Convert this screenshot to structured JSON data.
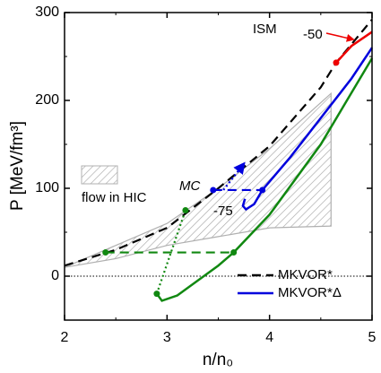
{
  "chart_data": {
    "type": "line",
    "xlabel": "n/n₀",
    "ylabel": "P [MeV/fm³]",
    "xlim": [
      2,
      5
    ],
    "xticks": [
      2,
      3,
      4,
      5
    ],
    "ylim": [
      -50,
      300
    ],
    "yticks": [
      0,
      100,
      200,
      300
    ],
    "reference_line": 0,
    "legend": "lower right",
    "band": {
      "label": "flow in HIC",
      "color": "#b0b0b0",
      "x": [
        2,
        2.5,
        3,
        3.5,
        4,
        4.6
      ],
      "upper": [
        10,
        35,
        60,
        100,
        145,
        208
      ],
      "lower": [
        10,
        20,
        35,
        45,
        55,
        57
      ]
    },
    "annotations": [
      "ISM",
      "-50",
      "MC",
      "-75"
    ],
    "series": [
      {
        "name": "MKVOR*",
        "color": "#000000",
        "style": "dashed",
        "x": [
          2,
          2.5,
          3,
          3.5,
          4,
          4.5,
          4.65,
          5
        ],
        "values": [
          12,
          30,
          55,
          100,
          148,
          215,
          243,
          292
        ]
      },
      {
        "name": "MKVOR*Δ",
        "color": "#0000dd",
        "style": "solid",
        "x": [
          3.76,
          3.74,
          3.77,
          3.85,
          3.93,
          4.2,
          4.5,
          4.8,
          5
        ],
        "values": [
          88,
          80,
          76,
          82,
          98,
          135,
          180,
          225,
          260
        ]
      },
      {
        "color": "#0000dd",
        "style": "dashed",
        "markers": "ends",
        "x": [
          3.45,
          3.93
        ],
        "values": [
          98,
          98
        ]
      },
      {
        "color": "#0000dd",
        "style": "dotted",
        "arrow": true,
        "x": [
          3.55,
          3.75
        ],
        "values": [
          98,
          128
        ]
      },
      {
        "color": "#118811",
        "style": "solid",
        "x": [
          2.9,
          2.95,
          3.1,
          3.3,
          3.5,
          3.65,
          4,
          4.5,
          5
        ],
        "values": [
          -20,
          -28,
          -22,
          -5,
          12,
          27,
          70,
          150,
          248
        ]
      },
      {
        "color": "#118811",
        "style": "dashed",
        "markers": "ends",
        "x": [
          2.4,
          3.65
        ],
        "values": [
          27,
          27
        ]
      },
      {
        "color": "#118811",
        "style": "dotted",
        "markers": "ends",
        "x": [
          2.9,
          3.18
        ],
        "values": [
          -20,
          75
        ]
      },
      {
        "color": "#ee0000",
        "style": "solid",
        "markers": "start",
        "x": [
          4.65,
          4.8,
          5
        ],
        "values": [
          243,
          262,
          278
        ]
      }
    ]
  }
}
